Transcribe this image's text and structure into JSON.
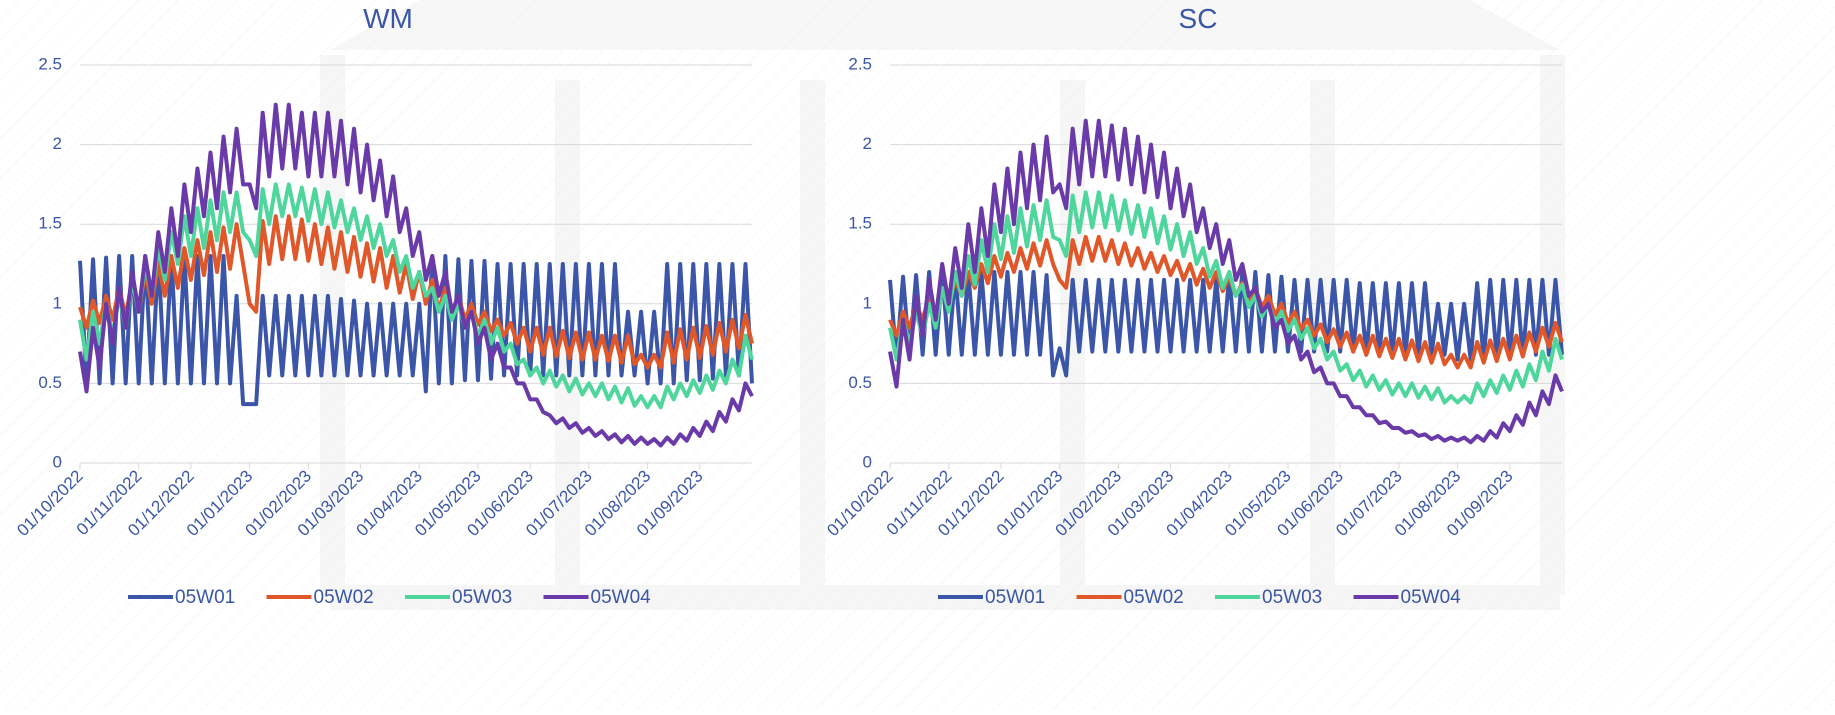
{
  "chart_data": [
    {
      "type": "line",
      "title": "WM",
      "ylim": [
        0,
        2.5
      ],
      "yticks": [
        0,
        0.5,
        1,
        1.5,
        2,
        2.5
      ],
      "grid": true,
      "categories": [
        "01/10/2022",
        null,
        null,
        null,
        null,
        null,
        null,
        null,
        null,
        "01/11/2022",
        null,
        null,
        null,
        null,
        null,
        null,
        null,
        "01/12/2022",
        null,
        null,
        null,
        null,
        null,
        null,
        null,
        null,
        "01/01/2023",
        null,
        null,
        null,
        null,
        null,
        null,
        null,
        null,
        "01/02/2023",
        null,
        null,
        null,
        null,
        null,
        null,
        null,
        "01/03/2023",
        null,
        null,
        null,
        null,
        null,
        null,
        null,
        null,
        "01/04/2023",
        null,
        null,
        null,
        null,
        null,
        null,
        null,
        null,
        "01/05/2023",
        null,
        null,
        null,
        null,
        null,
        null,
        null,
        "01/06/2023",
        null,
        null,
        null,
        null,
        null,
        null,
        null,
        null,
        "01/07/2023",
        null,
        null,
        null,
        null,
        null,
        null,
        null,
        null,
        "01/08/2023",
        null,
        null,
        null,
        null,
        null,
        null,
        null,
        "01/09/2023",
        null,
        null,
        null,
        null,
        null,
        null,
        null,
        null
      ],
      "series": [
        {
          "name": "05W01",
          "color": "#3b56a8",
          "values": [
            1.27,
            0.5,
            1.28,
            0.5,
            1.29,
            0.5,
            1.3,
            0.5,
            1.3,
            0.5,
            1.3,
            0.5,
            1.3,
            0.5,
            1.3,
            0.5,
            1.3,
            0.5,
            1.3,
            0.5,
            1.3,
            0.5,
            1.3,
            0.5,
            1.05,
            0.37,
            0.37,
            0.37,
            1.05,
            0.55,
            1.05,
            0.55,
            1.05,
            0.55,
            1.05,
            0.55,
            1.05,
            0.55,
            1.05,
            0.55,
            1.03,
            0.55,
            1.02,
            0.55,
            1.0,
            0.55,
            1.0,
            0.55,
            1.0,
            0.55,
            1.0,
            0.55,
            1.0,
            0.45,
            1.3,
            0.5,
            1.3,
            0.5,
            1.28,
            0.52,
            1.27,
            0.52,
            1.27,
            0.53,
            1.25,
            0.55,
            1.25,
            0.55,
            1.25,
            0.55,
            1.25,
            0.55,
            1.25,
            0.55,
            1.25,
            0.55,
            1.25,
            0.55,
            1.25,
            0.55,
            1.25,
            0.55,
            1.25,
            0.55,
            0.95,
            0.55,
            0.95,
            0.5,
            0.95,
            0.5,
            1.25,
            0.5,
            1.25,
            0.52,
            1.25,
            0.52,
            1.25,
            0.53,
            1.25,
            0.55,
            1.25,
            0.55,
            1.25,
            0.5
          ]
        },
        {
          "name": "05W02",
          "color": "#e0582a",
          "values": [
            0.98,
            0.85,
            1.02,
            0.88,
            1.05,
            0.9,
            1.1,
            0.92,
            1.15,
            0.95,
            1.2,
            1.0,
            1.25,
            1.05,
            1.3,
            1.1,
            1.35,
            1.15,
            1.4,
            1.18,
            1.45,
            1.2,
            1.48,
            1.22,
            1.5,
            1.25,
            1.0,
            0.95,
            1.52,
            1.25,
            1.55,
            1.28,
            1.55,
            1.28,
            1.53,
            1.27,
            1.5,
            1.25,
            1.48,
            1.22,
            1.45,
            1.2,
            1.42,
            1.17,
            1.38,
            1.14,
            1.35,
            1.1,
            1.3,
            1.07,
            1.25,
            1.03,
            1.2,
            1.0,
            1.15,
            0.96,
            1.1,
            0.93,
            1.05,
            0.9,
            1.0,
            0.87,
            0.95,
            0.83,
            0.9,
            0.8,
            0.88,
            0.75,
            0.85,
            0.7,
            0.85,
            0.68,
            0.85,
            0.67,
            0.83,
            0.66,
            0.82,
            0.65,
            0.82,
            0.65,
            0.8,
            0.64,
            0.8,
            0.63,
            0.8,
            0.62,
            0.68,
            0.6,
            0.68,
            0.6,
            0.82,
            0.63,
            0.84,
            0.65,
            0.85,
            0.66,
            0.86,
            0.68,
            0.88,
            0.7,
            0.9,
            0.72,
            0.93,
            0.75
          ]
        },
        {
          "name": "05W03",
          "color": "#4fd69c",
          "values": [
            0.9,
            0.65,
            0.95,
            0.75,
            1.0,
            0.8,
            1.05,
            0.85,
            1.15,
            0.95,
            1.25,
            1.05,
            1.35,
            1.15,
            1.45,
            1.25,
            1.55,
            1.3,
            1.6,
            1.35,
            1.65,
            1.4,
            1.7,
            1.45,
            1.7,
            1.45,
            1.4,
            1.3,
            1.72,
            1.5,
            1.75,
            1.55,
            1.75,
            1.55,
            1.73,
            1.52,
            1.72,
            1.5,
            1.7,
            1.48,
            1.65,
            1.45,
            1.6,
            1.4,
            1.55,
            1.35,
            1.5,
            1.3,
            1.4,
            1.2,
            1.3,
            1.1,
            1.2,
            1.05,
            1.1,
            0.95,
            1.05,
            0.9,
            1.0,
            0.85,
            0.95,
            0.8,
            0.9,
            0.75,
            0.85,
            0.7,
            0.75,
            0.62,
            0.65,
            0.55,
            0.6,
            0.5,
            0.58,
            0.48,
            0.55,
            0.45,
            0.53,
            0.43,
            0.5,
            0.42,
            0.5,
            0.4,
            0.48,
            0.38,
            0.47,
            0.36,
            0.42,
            0.35,
            0.42,
            0.35,
            0.48,
            0.4,
            0.5,
            0.42,
            0.52,
            0.44,
            0.55,
            0.46,
            0.58,
            0.5,
            0.65,
            0.55,
            0.8,
            0.65
          ]
        },
        {
          "name": "05W04",
          "color": "#6a3aa8",
          "values": [
            0.7,
            0.45,
            0.85,
            0.6,
            1.0,
            0.75,
            1.1,
            0.85,
            1.2,
            0.95,
            1.3,
            1.05,
            1.45,
            1.2,
            1.6,
            1.3,
            1.75,
            1.45,
            1.85,
            1.55,
            1.95,
            1.6,
            2.05,
            1.7,
            2.1,
            1.75,
            1.75,
            1.6,
            2.2,
            1.8,
            2.25,
            1.85,
            2.25,
            1.85,
            2.2,
            1.8,
            2.2,
            1.8,
            2.2,
            1.8,
            2.15,
            1.75,
            2.1,
            1.7,
            2.0,
            1.65,
            1.9,
            1.55,
            1.8,
            1.45,
            1.6,
            1.3,
            1.45,
            1.15,
            1.3,
            1.05,
            1.2,
            0.95,
            1.05,
            0.85,
            0.95,
            0.75,
            0.85,
            0.65,
            0.75,
            0.6,
            0.6,
            0.5,
            0.5,
            0.4,
            0.4,
            0.32,
            0.3,
            0.25,
            0.28,
            0.22,
            0.25,
            0.19,
            0.22,
            0.17,
            0.2,
            0.15,
            0.18,
            0.13,
            0.17,
            0.12,
            0.16,
            0.12,
            0.15,
            0.11,
            0.16,
            0.12,
            0.18,
            0.14,
            0.22,
            0.17,
            0.26,
            0.2,
            0.32,
            0.26,
            0.4,
            0.33,
            0.5,
            0.42
          ]
        }
      ]
    },
    {
      "type": "line",
      "title": "SC",
      "ylim": [
        0,
        2.5
      ],
      "yticks": [
        0,
        0.5,
        1,
        1.5,
        2,
        2.5
      ],
      "grid": true,
      "categories": [
        "01/10/2022",
        null,
        null,
        null,
        null,
        null,
        null,
        null,
        null,
        "01/11/2022",
        null,
        null,
        null,
        null,
        null,
        null,
        null,
        "01/12/2022",
        null,
        null,
        null,
        null,
        null,
        null,
        null,
        null,
        "01/01/2023",
        null,
        null,
        null,
        null,
        null,
        null,
        null,
        null,
        "01/02/2023",
        null,
        null,
        null,
        null,
        null,
        null,
        null,
        "01/03/2023",
        null,
        null,
        null,
        null,
        null,
        null,
        null,
        null,
        "01/04/2023",
        null,
        null,
        null,
        null,
        null,
        null,
        null,
        null,
        "01/05/2023",
        null,
        null,
        null,
        null,
        null,
        null,
        null,
        "01/06/2023",
        null,
        null,
        null,
        null,
        null,
        null,
        null,
        null,
        "01/07/2023",
        null,
        null,
        null,
        null,
        null,
        null,
        null,
        null,
        "01/08/2023",
        null,
        null,
        null,
        null,
        null,
        null,
        null,
        "01/09/2023",
        null,
        null,
        null,
        null,
        null,
        null,
        null,
        null
      ],
      "series": [
        {
          "name": "05W01",
          "color": "#3b56a8",
          "values": [
            1.15,
            0.65,
            1.17,
            0.67,
            1.18,
            0.68,
            1.2,
            0.68,
            1.2,
            0.68,
            1.2,
            0.68,
            1.2,
            0.68,
            1.2,
            0.68,
            1.2,
            0.68,
            1.2,
            0.68,
            1.2,
            0.68,
            1.2,
            0.68,
            1.18,
            0.55,
            0.72,
            0.55,
            1.15,
            0.7,
            1.15,
            0.7,
            1.15,
            0.7,
            1.15,
            0.7,
            1.15,
            0.7,
            1.15,
            0.7,
            1.15,
            0.7,
            1.15,
            0.7,
            1.15,
            0.7,
            1.15,
            0.7,
            1.15,
            0.7,
            1.15,
            0.7,
            1.18,
            0.7,
            1.2,
            0.7,
            1.2,
            0.7,
            1.18,
            0.7,
            1.17,
            0.7,
            1.15,
            0.7,
            1.15,
            0.7,
            1.15,
            0.7,
            1.15,
            0.7,
            1.15,
            0.7,
            1.13,
            0.68,
            1.13,
            0.68,
            1.13,
            0.68,
            1.13,
            0.68,
            1.13,
            0.68,
            1.13,
            0.68,
            1.0,
            0.68,
            1.0,
            0.65,
            1.0,
            0.65,
            1.13,
            0.65,
            1.15,
            0.66,
            1.15,
            0.67,
            1.15,
            0.67,
            1.15,
            0.68,
            1.15,
            0.68,
            1.15,
            0.68
          ]
        },
        {
          "name": "05W02",
          "color": "#e0582a",
          "values": [
            0.9,
            0.8,
            0.95,
            0.85,
            1.0,
            0.9,
            1.05,
            0.95,
            1.1,
            1.0,
            1.15,
            1.05,
            1.2,
            1.1,
            1.25,
            1.13,
            1.3,
            1.17,
            1.32,
            1.2,
            1.35,
            1.22,
            1.38,
            1.24,
            1.4,
            1.25,
            1.15,
            1.1,
            1.4,
            1.25,
            1.42,
            1.27,
            1.42,
            1.27,
            1.4,
            1.25,
            1.38,
            1.24,
            1.35,
            1.22,
            1.32,
            1.2,
            1.3,
            1.18,
            1.27,
            1.15,
            1.25,
            1.12,
            1.22,
            1.1,
            1.2,
            1.08,
            1.17,
            1.05,
            1.13,
            1.02,
            1.1,
            0.98,
            1.05,
            0.93,
            1.0,
            0.88,
            0.95,
            0.84,
            0.9,
            0.8,
            0.87,
            0.76,
            0.84,
            0.73,
            0.82,
            0.7,
            0.8,
            0.68,
            0.8,
            0.67,
            0.78,
            0.66,
            0.78,
            0.65,
            0.77,
            0.64,
            0.76,
            0.63,
            0.75,
            0.62,
            0.68,
            0.6,
            0.68,
            0.6,
            0.76,
            0.63,
            0.77,
            0.64,
            0.78,
            0.65,
            0.8,
            0.67,
            0.82,
            0.7,
            0.85,
            0.73,
            0.88,
            0.76
          ]
        },
        {
          "name": "05W03",
          "color": "#4fd69c",
          "values": [
            0.85,
            0.65,
            0.9,
            0.75,
            0.95,
            0.8,
            1.0,
            0.85,
            1.1,
            0.95,
            1.2,
            1.05,
            1.3,
            1.12,
            1.4,
            1.2,
            1.5,
            1.28,
            1.55,
            1.32,
            1.6,
            1.36,
            1.62,
            1.4,
            1.65,
            1.42,
            1.4,
            1.3,
            1.68,
            1.45,
            1.7,
            1.48,
            1.7,
            1.48,
            1.68,
            1.46,
            1.65,
            1.44,
            1.62,
            1.42,
            1.6,
            1.38,
            1.55,
            1.34,
            1.5,
            1.3,
            1.45,
            1.25,
            1.35,
            1.17,
            1.27,
            1.1,
            1.2,
            1.05,
            1.12,
            0.98,
            1.05,
            0.92,
            1.0,
            0.88,
            0.95,
            0.83,
            0.9,
            0.78,
            0.85,
            0.72,
            0.78,
            0.65,
            0.7,
            0.58,
            0.62,
            0.52,
            0.58,
            0.48,
            0.55,
            0.46,
            0.52,
            0.43,
            0.5,
            0.42,
            0.5,
            0.41,
            0.48,
            0.4,
            0.47,
            0.38,
            0.42,
            0.38,
            0.42,
            0.38,
            0.5,
            0.42,
            0.52,
            0.44,
            0.55,
            0.46,
            0.58,
            0.48,
            0.62,
            0.52,
            0.7,
            0.58,
            0.78,
            0.65
          ]
        },
        {
          "name": "05W04",
          "color": "#6a3aa8",
          "values": [
            0.7,
            0.48,
            0.9,
            0.65,
            1.05,
            0.8,
            1.15,
            0.9,
            1.25,
            1.0,
            1.35,
            1.1,
            1.5,
            1.2,
            1.6,
            1.3,
            1.75,
            1.45,
            1.85,
            1.5,
            1.95,
            1.6,
            2.0,
            1.65,
            2.05,
            1.7,
            1.75,
            1.6,
            2.1,
            1.75,
            2.15,
            1.8,
            2.15,
            1.8,
            2.12,
            1.78,
            2.1,
            1.75,
            2.05,
            1.7,
            2.0,
            1.67,
            1.95,
            1.6,
            1.85,
            1.55,
            1.75,
            1.45,
            1.6,
            1.35,
            1.5,
            1.25,
            1.4,
            1.15,
            1.25,
            1.05,
            1.1,
            0.95,
            1.0,
            0.85,
            0.9,
            0.75,
            0.8,
            0.65,
            0.7,
            0.57,
            0.6,
            0.5,
            0.5,
            0.42,
            0.42,
            0.35,
            0.35,
            0.3,
            0.3,
            0.25,
            0.26,
            0.22,
            0.22,
            0.19,
            0.2,
            0.17,
            0.18,
            0.15,
            0.17,
            0.14,
            0.16,
            0.14,
            0.16,
            0.13,
            0.17,
            0.14,
            0.2,
            0.16,
            0.25,
            0.2,
            0.3,
            0.24,
            0.38,
            0.3,
            0.45,
            0.37,
            0.55,
            0.45
          ]
        }
      ]
    }
  ]
}
